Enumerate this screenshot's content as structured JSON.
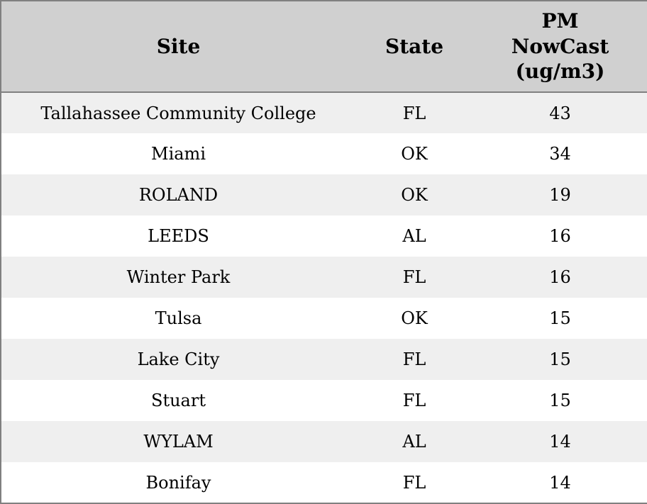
{
  "colors": {
    "header_bg": "#d0d0d0",
    "row_stripe_bg": "#efefef",
    "row_bg": "#ffffff",
    "border": "#808080",
    "text": "#000000"
  },
  "table": {
    "columns": [
      {
        "key": "site",
        "label": "Site"
      },
      {
        "key": "state",
        "label": "State"
      },
      {
        "key": "pm",
        "label": "PM NowCast (ug/m3)"
      }
    ],
    "rows": [
      {
        "site": "Tallahassee Community College",
        "state": "FL",
        "pm": "43"
      },
      {
        "site": "Miami",
        "state": "OK",
        "pm": "34"
      },
      {
        "site": "ROLAND",
        "state": "OK",
        "pm": "19"
      },
      {
        "site": "LEEDS",
        "state": "AL",
        "pm": "16"
      },
      {
        "site": "Winter Park",
        "state": "FL",
        "pm": "16"
      },
      {
        "site": "Tulsa",
        "state": "OK",
        "pm": "15"
      },
      {
        "site": "Lake City",
        "state": "FL",
        "pm": "15"
      },
      {
        "site": "Stuart",
        "state": "FL",
        "pm": "15"
      },
      {
        "site": "WYLAM",
        "state": "AL",
        "pm": "14"
      },
      {
        "site": "Bonifay",
        "state": "FL",
        "pm": "14"
      }
    ]
  },
  "chart_data": {
    "type": "table",
    "title": "",
    "columns": [
      "Site",
      "State",
      "PM NowCast (ug/m3)"
    ],
    "rows": [
      [
        "Tallahassee Community College",
        "FL",
        43
      ],
      [
        "Miami",
        "OK",
        34
      ],
      [
        "ROLAND",
        "OK",
        19
      ],
      [
        "LEEDS",
        "AL",
        16
      ],
      [
        "Winter Park",
        "FL",
        16
      ],
      [
        "Tulsa",
        "OK",
        15
      ],
      [
        "Lake City",
        "FL",
        15
      ],
      [
        "Stuart",
        "FL",
        15
      ],
      [
        "WYLAM",
        "AL",
        14
      ],
      [
        "Bonifay",
        "FL",
        14
      ]
    ],
    "layout_hints": {
      "header_background": "#d0d0d0",
      "zebra_striping": true,
      "stripe_rows": "odd",
      "cell_alignment": "center",
      "sorted_by": "PM NowCast (ug/m3) descending"
    }
  }
}
